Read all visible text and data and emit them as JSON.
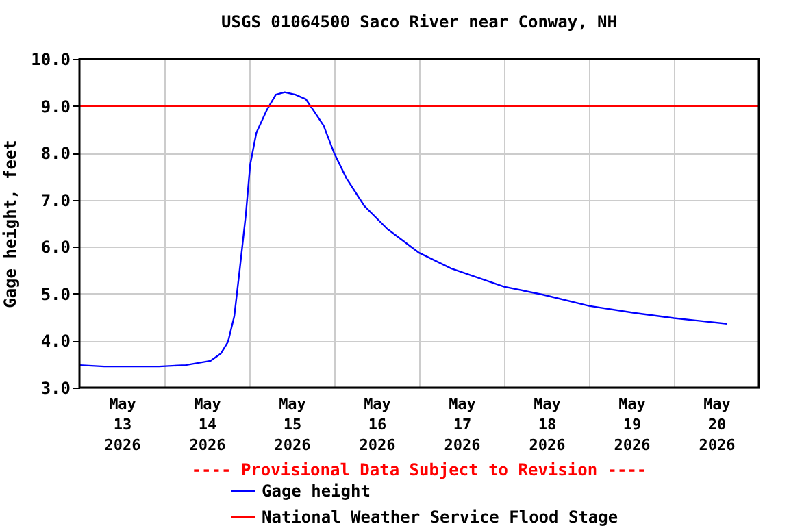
{
  "chart_data": {
    "type": "line",
    "title": "USGS 01064500 Saco River near Conway, NH",
    "ylabel": "Gage height, feet",
    "x": [
      "2026-05-13T00:00",
      "2026-05-13T07:00",
      "2026-05-13T22:30",
      "2026-05-14T06:00",
      "2026-05-14T13:00",
      "2026-05-14T16:00",
      "2026-05-14T18:00",
      "2026-05-14T19:45",
      "2026-05-14T21:15",
      "2026-05-14T23:00",
      "2026-05-15T00:15",
      "2026-05-15T02:00",
      "2026-05-15T05:00",
      "2026-05-15T07:30",
      "2026-05-15T10:00",
      "2026-05-15T13:00",
      "2026-05-15T16:00",
      "2026-05-15T18:00",
      "2026-05-15T21:00",
      "2026-05-16T00:00",
      "2026-05-16T03:30",
      "2026-05-16T08:30",
      "2026-05-16T15:00",
      "2026-05-17T00:00",
      "2026-05-17T09:00",
      "2026-05-18T00:00",
      "2026-05-18T11:00",
      "2026-05-19T00:00",
      "2026-05-19T13:00",
      "2026-05-20T00:00",
      "2026-05-20T15:00"
    ],
    "series": [
      {
        "name": "Gage height",
        "color": "#0000ff",
        "values": [
          3.48,
          3.45,
          3.45,
          3.48,
          3.57,
          3.73,
          3.98,
          4.52,
          5.49,
          6.67,
          7.75,
          8.43,
          8.92,
          9.24,
          9.29,
          9.24,
          9.14,
          8.92,
          8.58,
          7.99,
          7.45,
          6.87,
          6.38,
          5.87,
          5.54,
          5.15,
          4.98,
          4.74,
          4.59,
          4.48,
          4.36
        ]
      }
    ],
    "xlim": [
      "2026-05-13T00:00",
      "2026-05-21T00:00"
    ],
    "xticks": [
      {
        "value": "2026-05-13T12:00",
        "label": "May 13 2026"
      },
      {
        "value": "2026-05-14T00:00",
        "label": null
      },
      {
        "value": "2026-05-14T12:00",
        "label": "May 14 2026"
      },
      {
        "value": "2026-05-15T00:00",
        "label": null
      },
      {
        "value": "2026-05-15T12:00",
        "label": "May 15 2026"
      },
      {
        "value": "2026-05-16T00:00",
        "label": null
      },
      {
        "value": "2026-05-16T12:00",
        "label": "May 16 2026"
      },
      {
        "value": "2026-05-17T00:00",
        "label": null
      },
      {
        "value": "2026-05-17T12:00",
        "label": "May 17 2026"
      },
      {
        "value": "2026-05-18T00:00",
        "label": null
      },
      {
        "value": "2026-05-18T12:00",
        "label": "May 18 2026"
      },
      {
        "value": "2026-05-19T00:00",
        "label": null
      },
      {
        "value": "2026-05-19T12:00",
        "label": "May 19 2026"
      },
      {
        "value": "2026-05-20T00:00",
        "label": null
      },
      {
        "value": "2026-05-20T12:00",
        "label": "May 20 2026"
      }
    ],
    "ylim": [
      3,
      10
    ],
    "yticks": [
      {
        "value": 3,
        "label": "3.0"
      },
      {
        "value": 4,
        "label": "4.0"
      },
      {
        "value": 5,
        "label": "5.0"
      },
      {
        "value": 6,
        "label": "6.0"
      },
      {
        "value": 7,
        "label": "7.0"
      },
      {
        "value": 8,
        "label": "8.0"
      },
      {
        "value": 9,
        "label": "9.0"
      },
      {
        "value": 10,
        "label": "10.0"
      }
    ],
    "ref_lines": [
      {
        "axis": "y",
        "value": 9,
        "label": "National Weather Service Flood Stage",
        "color": "#ff0000"
      }
    ],
    "annotations": [
      "---- Provisional Data Subject to Revision ----"
    ],
    "grid": true,
    "legend": "bottom",
    "marker": "none",
    "line_style": "solid"
  }
}
